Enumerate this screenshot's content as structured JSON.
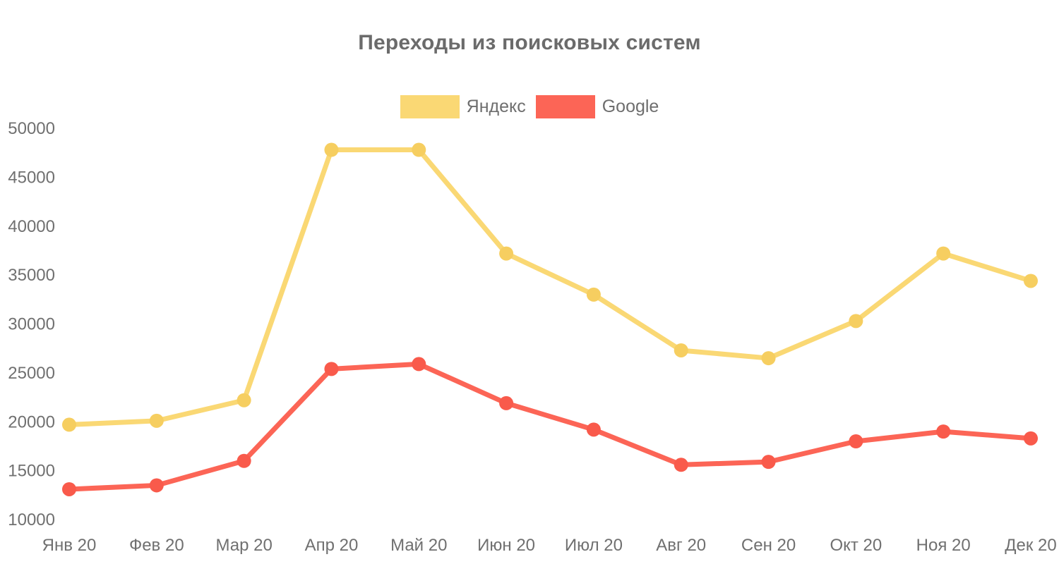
{
  "chart_data": {
    "type": "line",
    "title": "Переходы из поисковых систем",
    "categories": [
      "Янв 20",
      "Фев 20",
      "Мар 20",
      "Апр 20",
      "Май 20",
      "Июн 20",
      "Июл 20",
      "Авг 20",
      "Сен 20",
      "Окт 20",
      "Ноя 20",
      "Дек 20"
    ],
    "series": [
      {
        "name": "Яндекс",
        "color": "#FAD874",
        "marker_color": "#F6CE60",
        "values": [
          19700,
          20100,
          22200,
          47800,
          47800,
          37200,
          33000,
          27300,
          26500,
          30300,
          37200,
          34400
        ]
      },
      {
        "name": "Google",
        "color": "#FC6556",
        "marker_color": "#F95A4B",
        "values": [
          13100,
          13500,
          16000,
          25400,
          25900,
          21900,
          19200,
          15600,
          15900,
          18000,
          19000,
          18300
        ]
      }
    ],
    "y_ticks": [
      10000,
      15000,
      20000,
      25000,
      30000,
      35000,
      40000,
      45000,
      50000
    ],
    "ylim": [
      10000,
      50000
    ],
    "xlabel": "",
    "ylabel": "",
    "grid": false,
    "legend_position": "top-center",
    "background": "#FFFFFF",
    "text_color": "#707070"
  }
}
